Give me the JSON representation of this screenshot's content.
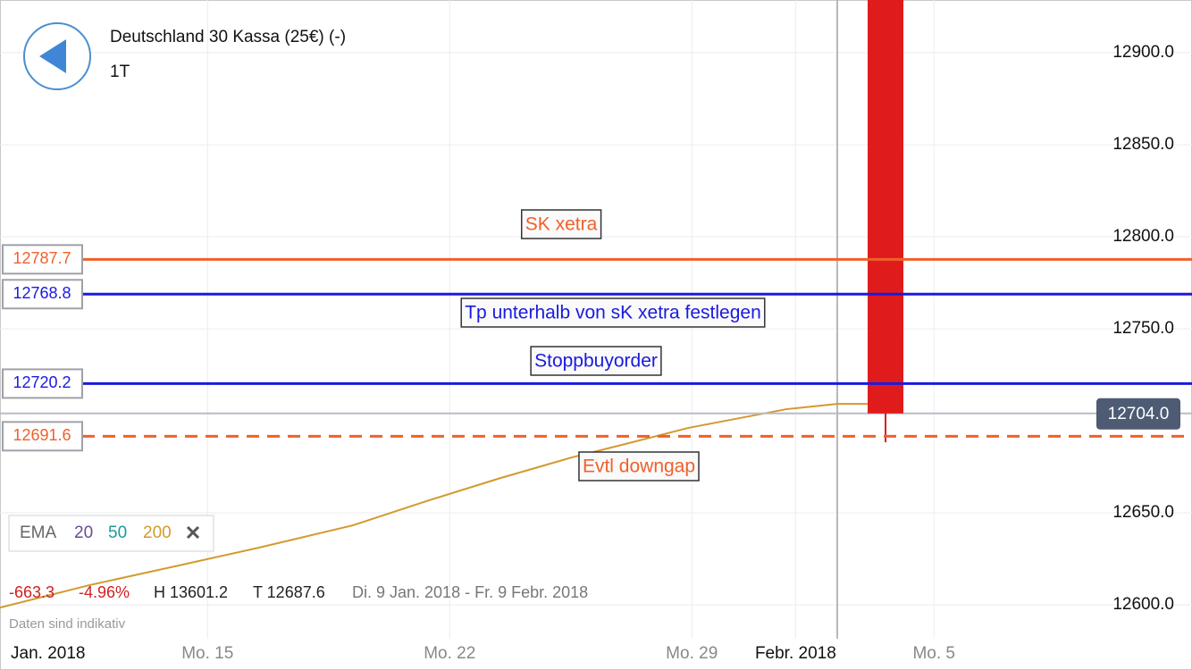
{
  "chart_data": {
    "type": "candlestick",
    "title": "Deutschland 30 Kassa (25€) (-)",
    "subtitle": "1T",
    "xlim": [
      9,
      43.46
    ],
    "ylim": [
      12581.6,
      12928.6
    ],
    "xticks": [
      {
        "value": 15,
        "label": "Mo. 15"
      },
      {
        "value": 22,
        "label": "Mo. 22"
      },
      {
        "value": 29,
        "label": "Mo. 29"
      },
      {
        "value": 32,
        "label": "Febr. 2018"
      },
      {
        "value": 36,
        "label": "Mo. 5"
      }
    ],
    "period_label": "Jan. 2018",
    "yticks": [
      {
        "value": 12600,
        "label": "12600.0"
      },
      {
        "value": 12650,
        "label": "12650.0"
      },
      {
        "value": 12750,
        "label": "12750.0"
      },
      {
        "value": 12800,
        "label": "12800.0"
      },
      {
        "value": 12850,
        "label": "12850.0"
      },
      {
        "value": 12900,
        "label": "12900.0"
      }
    ],
    "grid": true,
    "candles": [
      {
        "x": 34.6,
        "open": 12928.6,
        "high": 12928.6,
        "low": 12688.3,
        "close": 12704,
        "color": "#e01b1b"
      }
    ],
    "current_price": {
      "value": 12704,
      "label": "12704.0"
    },
    "levels": [
      {
        "value": 12787.7,
        "color": "#f0602a",
        "dashed": false
      },
      {
        "value": 12768.8,
        "color": "#1a1ae0",
        "dashed": false
      },
      {
        "value": 12720.2,
        "color": "#1a1ae0",
        "dashed": false
      },
      {
        "value": 12691.6,
        "color": "#f0602a",
        "dashed": true
      }
    ],
    "annotations": [
      "SK xetra",
      "Tp unterhalb von sK xetra festlegen",
      "Stoppbuyorder",
      "Evtl downgap"
    ],
    "series": [
      {
        "name": "200",
        "color": "#d29a2e",
        "x": [
          9,
          11.58,
          14.17,
          16.49,
          19.2,
          21.4,
          23.47,
          25.53,
          27.08,
          28.89,
          31.73,
          33.2,
          34.57
        ],
        "values": [
          12598.5,
          12610.7,
          12621.4,
          12631.1,
          12643.2,
          12656.8,
          12668.9,
          12680.1,
          12687.4,
          12696.1,
          12706.3,
          12709.2,
          12709.2
        ]
      }
    ],
    "legend": {
      "label": "EMA",
      "periods": [
        "20",
        "50",
        "200"
      ],
      "colors": [
        "#6a4c93",
        "#1a9a9a",
        "#d29a2e"
      ]
    },
    "stats": {
      "change": "-663.3",
      "change_pct": "-4.96%",
      "high": "H 13601.2",
      "low": "T 12687.6",
      "range": "Di. 9 Jan. 2018 - Fr. 9 Febr. 2018"
    },
    "note": "Daten sind indikativ"
  }
}
